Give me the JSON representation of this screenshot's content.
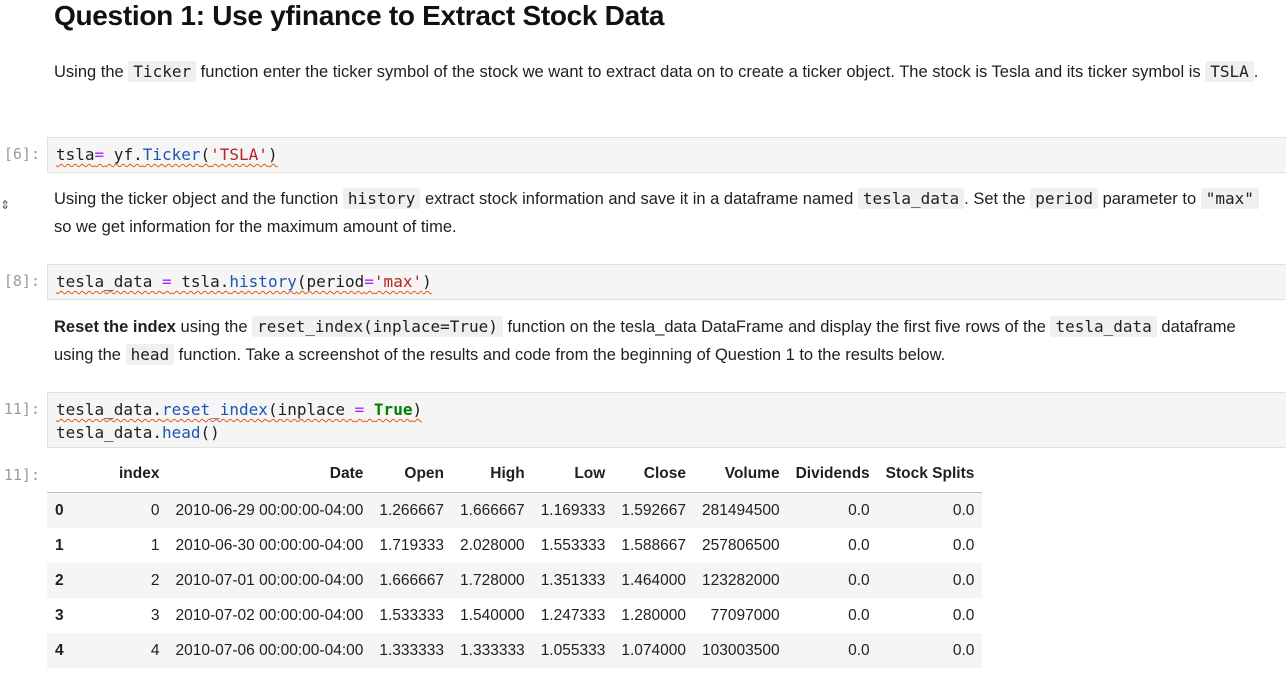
{
  "question_title": "Question 1: Use yfinance to Extract Stock Data",
  "para1": {
    "t1": "Using the ",
    "code1": "Ticker",
    "t2": " function enter the ticker symbol of the stock we want to extract data on to create a ticker object. The stock is Tesla and its ticker symbol is ",
    "code2": "TSLA",
    "t3": "."
  },
  "cell6": {
    "prompt": "[6]:",
    "tok1": "tsla",
    "tok2": "=",
    "tok3": " yf.",
    "tok4": "Ticker",
    "tok5": "(",
    "tok6": "'TSLA'",
    "tok7": ")"
  },
  "para2": {
    "t1": "Using the ticker object and the function ",
    "code1": "history",
    "t2": " extract stock information and save it in a dataframe named ",
    "code2": "tesla_data",
    "t3": ". Set the ",
    "code3": "period",
    "t4": " parameter to ",
    "code4": "\"max\"",
    "t5": " so we get information for the maximum amount of time."
  },
  "cell8": {
    "prompt": "[8]:",
    "tok1": "tesla_data ",
    "tok2": "=",
    "tok3": " tsla.",
    "tok4": "history",
    "tok5": "(period",
    "tok6": "=",
    "tok7": "'max'",
    "tok8": ")"
  },
  "para3": {
    "bold": "Reset the index",
    "t1": " using the ",
    "code1": "reset_index(inplace=True)",
    "t2": " function on the tesla_data DataFrame and display the first five rows of the ",
    "code2": "tesla_data",
    "t3": " dataframe using the ",
    "code3": "head",
    "t4": " function. Take a screenshot of the results and code from the beginning of Question 1 to the results below."
  },
  "cell11": {
    "prompt": "11]:",
    "l1tok1": "tesla_data.",
    "l1tok2": "reset_index",
    "l1tok3": "(inplace ",
    "l1tok4": "=",
    "l1tok5": " ",
    "l1tok6": "True",
    "l1tok7": ")",
    "l2tok1": "tesla_data.",
    "l2tok2": "head",
    "l2tok3": "()"
  },
  "output11": {
    "prompt": "11]:",
    "columns": [
      "",
      "index",
      "Date",
      "Open",
      "High",
      "Low",
      "Close",
      "Volume",
      "Dividends",
      "Stock Splits"
    ],
    "rows": [
      [
        "0",
        "0",
        "2010-06-29 00:00:00-04:00",
        "1.266667",
        "1.666667",
        "1.169333",
        "1.592667",
        "281494500",
        "0.0",
        "0.0"
      ],
      [
        "1",
        "1",
        "2010-06-30 00:00:00-04:00",
        "1.719333",
        "2.028000",
        "1.553333",
        "1.588667",
        "257806500",
        "0.0",
        "0.0"
      ],
      [
        "2",
        "2",
        "2010-07-01 00:00:00-04:00",
        "1.666667",
        "1.728000",
        "1.351333",
        "1.464000",
        "123282000",
        "0.0",
        "0.0"
      ],
      [
        "3",
        "3",
        "2010-07-02 00:00:00-04:00",
        "1.533333",
        "1.540000",
        "1.247333",
        "1.280000",
        "77097000",
        "0.0",
        "0.0"
      ],
      [
        "4",
        "4",
        "2010-07-06 00:00:00-04:00",
        "1.333333",
        "1.333333",
        "1.055333",
        "1.074000",
        "103003500",
        "0.0",
        "0.0"
      ]
    ]
  }
}
